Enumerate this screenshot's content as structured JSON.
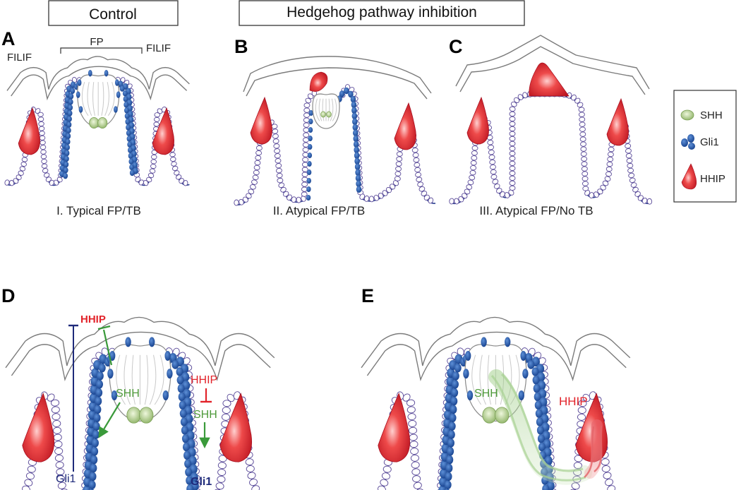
{
  "headers": {
    "control": "Control",
    "inhibition": "Hedgehog pathway inhibition"
  },
  "panels": {
    "a": {
      "letter": "A",
      "caption": "I. Typical FP/TB",
      "fp": "FP",
      "filif_left": "FILIF",
      "filif_right": "FILIF"
    },
    "b": {
      "letter": "B",
      "caption": "II. Atypical FP/TB"
    },
    "c": {
      "letter": "C",
      "caption": "III. Atypical FP/No TB"
    },
    "d": {
      "letter": "D",
      "hhip_top": "HHIP",
      "shh_left": "SHH",
      "gli1_left": "Gli1",
      "hhip_right": "HHIP",
      "shh_right": "SHH",
      "gli1_bottom": "Gli1"
    },
    "e": {
      "letter": "E",
      "shh": "SHH",
      "hhip": "HHIP"
    }
  },
  "legend": {
    "items": [
      {
        "label": "SHH",
        "icon": "shh-icon"
      },
      {
        "label": "Gli1",
        "icon": "gli1-icon"
      },
      {
        "label": "HHIP",
        "icon": "hhip-icon"
      }
    ]
  },
  "colors": {
    "shh": "#9dc07a",
    "gli1": "#1f4fa3",
    "hhip": "#d81e2a",
    "epithelium": "#2a3f8f",
    "outline": "#888888",
    "gli1_text": "#1e2a7a",
    "shh_text": "#4e9a3a"
  }
}
